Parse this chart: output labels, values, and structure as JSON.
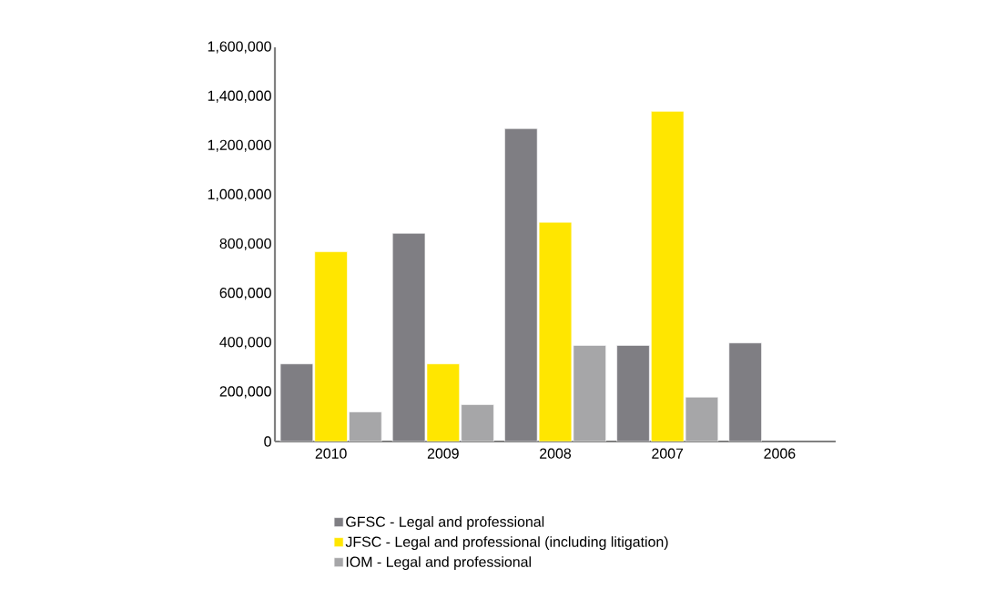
{
  "chart_data": {
    "type": "bar",
    "categories": [
      "2010",
      "2009",
      "2008",
      "2007",
      "2006"
    ],
    "series": [
      {
        "name": "GFSC - Legal and professional",
        "color": "#7f7e83",
        "values": [
          315000,
          845000,
          1270000,
          390000,
          400000
        ]
      },
      {
        "name": "JFSC - Legal and professional (including litigation)",
        "color": "#ffe600",
        "values": [
          770000,
          315000,
          890000,
          1340000,
          null
        ]
      },
      {
        "name": "IOM - Legal and professional",
        "color": "#a6a6a8",
        "values": [
          120000,
          150000,
          390000,
          180000,
          null
        ]
      }
    ],
    "ylim": [
      0,
      1600000
    ],
    "yticks": [
      {
        "value": 0,
        "label": "0"
      },
      {
        "value": 200000,
        "label": "200,000"
      },
      {
        "value": 400000,
        "label": "400,000"
      },
      {
        "value": 600000,
        "label": "600,000"
      },
      {
        "value": 800000,
        "label": "800,000"
      },
      {
        "value": 1000000,
        "label": "1,000,000"
      },
      {
        "value": 1200000,
        "label": "1,200,000"
      },
      {
        "value": 1400000,
        "label": "1,400,000"
      },
      {
        "value": 1600000,
        "label": "1,600,000"
      }
    ],
    "grid": false,
    "legend": "bottom"
  }
}
